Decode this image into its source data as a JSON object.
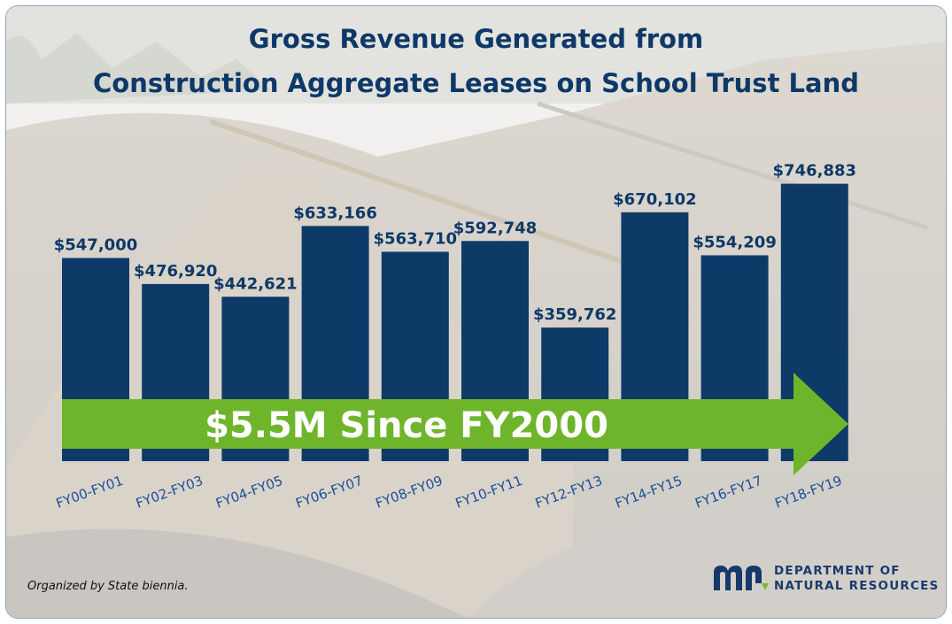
{
  "chart_data": {
    "type": "bar",
    "title": "Gross Revenue Generated from",
    "subtitle": "Construction Aggregate Leases on School Trust Land",
    "categories": [
      "FY00-FY01",
      "FY02-FY03",
      "FY04-FY05",
      "FY06-FY07",
      "FY08-FY09",
      "FY10-FY11",
      "FY12-FY13",
      "FY14-FY15",
      "FY16-FY17",
      "FY18-FY19"
    ],
    "values": [
      547000,
      476920,
      442621,
      633166,
      563710,
      592748,
      359762,
      670102,
      554209,
      746883
    ],
    "data_labels": [
      "$547,000",
      "$476,920",
      "$442,621",
      "$633,166",
      "$563,710",
      "$592,748",
      "$359,762",
      "$670,102",
      "$554,209",
      "$746,883"
    ],
    "xlabel": "",
    "ylabel": "",
    "ylim": [
      0,
      1000000
    ],
    "grid": false,
    "annotation": "$5.5M Since FY2000",
    "colors": {
      "bar": "#0e3a68",
      "arrow": "#6fb52c",
      "label": "#0d3868",
      "tick": "#1c4f96"
    }
  },
  "footnote": "Organized by State biennia.",
  "logo": {
    "mark": "mn",
    "line1": "DEPARTMENT OF",
    "line2": "NATURAL RESOURCES"
  }
}
